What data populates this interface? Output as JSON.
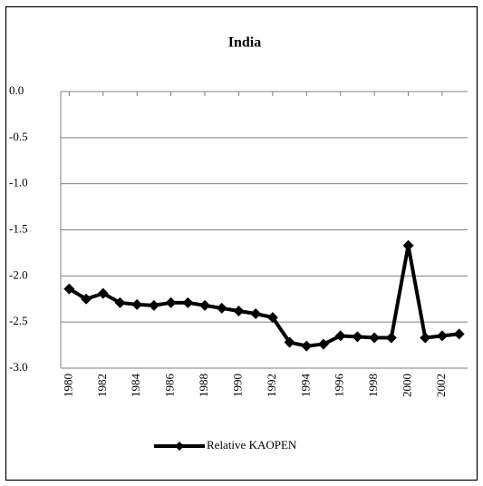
{
  "chart_data": {
    "type": "line",
    "title": "India",
    "x": [
      1980,
      1981,
      1982,
      1983,
      1984,
      1985,
      1986,
      1987,
      1988,
      1989,
      1990,
      1991,
      1992,
      1993,
      1994,
      1995,
      1996,
      1997,
      1998,
      1999,
      2000,
      2001,
      2002,
      2003
    ],
    "xlim": [
      1979.5,
      2003.5
    ],
    "xticks": [
      1980,
      1982,
      1984,
      1986,
      1988,
      1990,
      1992,
      1994,
      1996,
      1998,
      2000,
      2002
    ],
    "ylim": [
      -3,
      0
    ],
    "yticks": [
      {
        "value": 0,
        "label": "0.0"
      },
      -0.5,
      {
        "value": -1,
        "label": "-1.0"
      },
      -1.5,
      {
        "value": -2,
        "label": "-2.0"
      },
      -2.5,
      {
        "value": -3,
        "label": "-3.0"
      }
    ],
    "grid": true,
    "legend": "bottom",
    "series": [
      {
        "name": "Relative KAOPEN",
        "color": "#000000",
        "values": [
          -2.14,
          -2.25,
          -2.19,
          -2.29,
          -2.31,
          -2.32,
          -2.29,
          -2.29,
          -2.32,
          -2.35,
          -2.38,
          -2.41,
          -2.45,
          -2.72,
          -2.76,
          -2.74,
          -2.65,
          -2.66,
          -2.67,
          -2.67,
          -1.67,
          -2.67,
          -2.65,
          -2.63
        ]
      }
    ]
  }
}
